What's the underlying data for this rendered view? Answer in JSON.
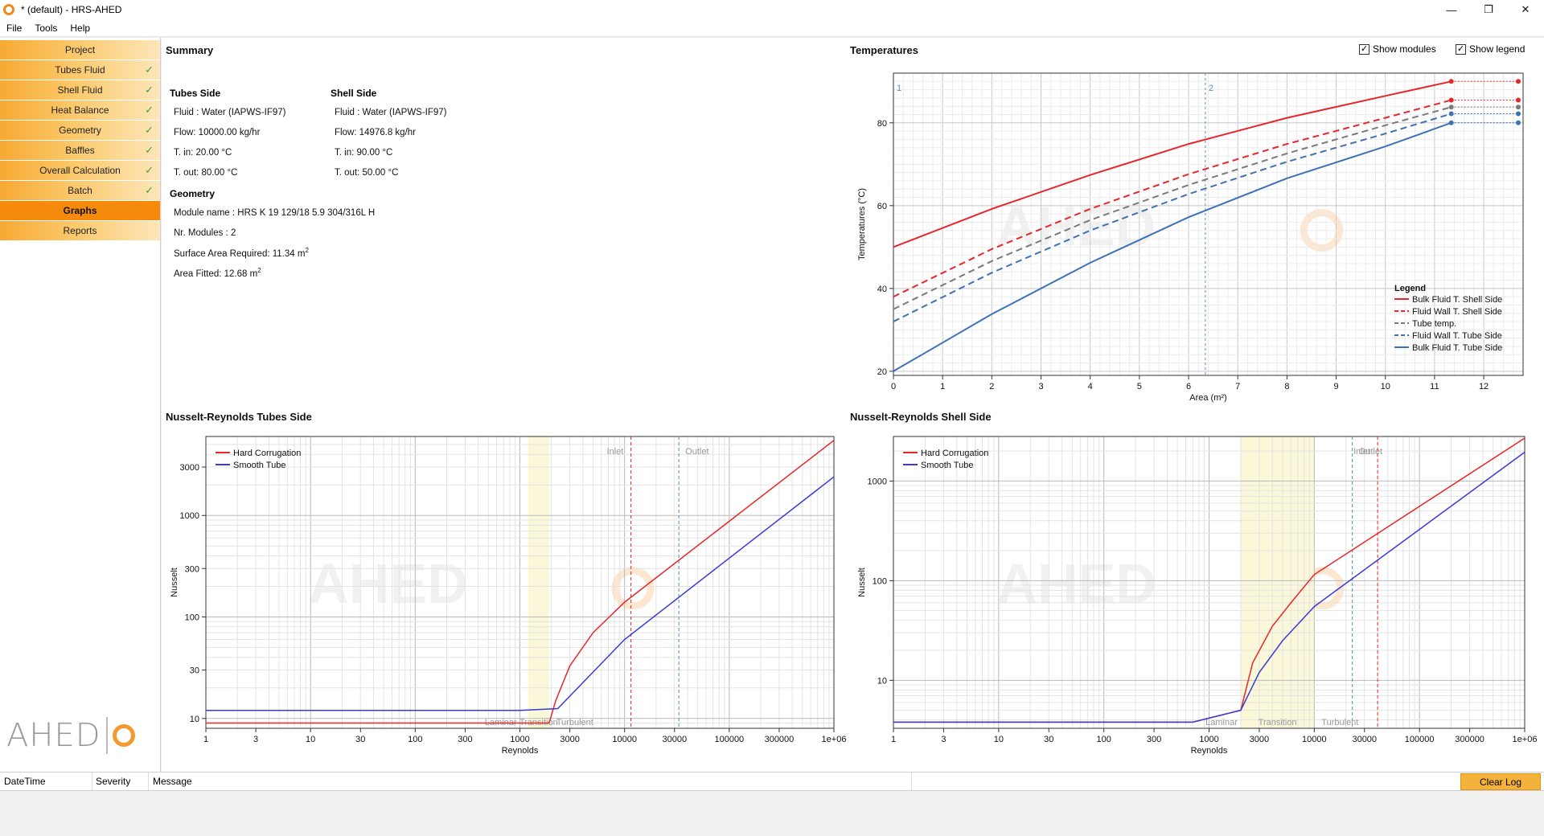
{
  "window": {
    "title": "* (default) - HRS-AHED",
    "controls": [
      "—",
      "❐",
      "✕"
    ]
  },
  "menu": [
    "File",
    "Tools",
    "Help"
  ],
  "sidebar": {
    "items": [
      {
        "label": "Project",
        "checked": false
      },
      {
        "label": "Tubes Fluid",
        "checked": true
      },
      {
        "label": "Shell Fluid",
        "checked": true
      },
      {
        "label": "Heat Balance",
        "checked": true
      },
      {
        "label": "Geometry",
        "checked": true
      },
      {
        "label": "Baffles",
        "checked": true
      },
      {
        "label": "Overall Calculation",
        "checked": true
      },
      {
        "label": "Batch",
        "checked": true
      },
      {
        "label": "Graphs",
        "checked": false,
        "active": true
      },
      {
        "label": "Reports",
        "checked": false
      }
    ],
    "check_mark": "✓",
    "logo_text": "AHED"
  },
  "summary": {
    "title": "Summary",
    "tubes": {
      "heading": "Tubes Side",
      "fluid": "Fluid : Water (IAPWS-IF97)",
      "flow": "Flow: 10000.00 kg/hr",
      "t_in": "T. in: 20.00 °C",
      "t_out": "T. out: 80.00 °C"
    },
    "shell": {
      "heading": "Shell Side",
      "fluid": "Fluid : Water (IAPWS-IF97)",
      "flow": "Flow: 14976.8 kg/hr",
      "t_in": "T. in: 90.00 °C",
      "t_out": "T. out: 50.00 °C"
    },
    "geometry": {
      "heading": "Geometry",
      "module_name": "Module name : HRS K 19 129/18 5.9 304/316L H",
      "nr_modules": "Nr. Modules : 2",
      "surface_required": "Surface Area Required: 11.34 m",
      "area_fitted": "Area Fitted: 12.68 m",
      "sup": "2"
    }
  },
  "temperatures_panel": {
    "title": "Temperatures",
    "show_modules": {
      "label": "Show modules",
      "checked": true
    },
    "show_legend": {
      "label": "Show legend",
      "checked": true
    }
  },
  "nr_tubes_title": "Nusselt-Reynolds Tubes Side",
  "nr_shell_title": "Nusselt-Reynolds Shell Side",
  "watermark": "AHED",
  "chart_data": [
    {
      "type": "line",
      "title": "Temperatures",
      "xlabel": "Area (m²)",
      "ylabel": "Temperatures (°C)",
      "xlim": [
        0,
        12.8
      ],
      "ylim": [
        19,
        92
      ],
      "xticks": [
        0,
        1,
        2,
        3,
        4,
        5,
        6,
        7,
        8,
        9,
        10,
        11,
        12
      ],
      "yticks": [
        20,
        40,
        60,
        80
      ],
      "module_markers": [
        {
          "label": "1",
          "x": 0
        },
        {
          "label": "2",
          "x": 6.34
        }
      ],
      "legend_title": "Legend",
      "legend_position": "bottom-right",
      "series": [
        {
          "name": "Bulk Fluid T. Shell Side",
          "color": "#e8262a",
          "dash": "",
          "x": [
            0,
            2,
            4,
            6,
            8,
            10,
            11.34
          ],
          "y": [
            50,
            59.2,
            67.4,
            74.9,
            81.2,
            86.5,
            90
          ]
        },
        {
          "name": "Fluid Wall T. Shell Side",
          "color": "#e8262a",
          "dash": "8,5",
          "x": [
            0,
            2,
            4,
            6,
            8,
            10,
            11.34
          ],
          "y": [
            38,
            49.5,
            59.2,
            67.6,
            74.9,
            81.2,
            85.5
          ]
        },
        {
          "name": "Tube temp.",
          "color": "#7a7a7a",
          "dash": "8,5",
          "x": [
            0,
            2,
            4,
            6,
            8,
            10,
            11.34
          ],
          "y": [
            35,
            46.6,
            56.5,
            65,
            72.6,
            79.4,
            83.8
          ]
        },
        {
          "name": "Fluid Wall T. Tube Side",
          "color": "#3e72b5",
          "dash": "8,5",
          "x": [
            0,
            2,
            4,
            6,
            8,
            10,
            11.34
          ],
          "y": [
            32,
            43.8,
            54,
            62.8,
            70.6,
            77.4,
            82.2
          ]
        },
        {
          "name": "Bulk Fluid T. Tube Side",
          "color": "#3e72b5",
          "dash": "",
          "x": [
            0,
            2,
            4,
            6,
            8,
            10,
            11.34
          ],
          "y": [
            20,
            33.8,
            46.2,
            57.2,
            66.6,
            74.3,
            80
          ]
        }
      ]
    },
    {
      "type": "line",
      "title": "Nusselt-Reynolds Tubes Side",
      "xlabel": "Reynolds",
      "ylabel": "Nusselt",
      "xscale": "log",
      "yscale": "log",
      "xlim": [
        1,
        1000000
      ],
      "ylim": [
        8,
        6000
      ],
      "xticks": [
        1,
        3,
        10,
        30,
        100,
        300,
        1000,
        3000,
        10000,
        30000,
        100000,
        300000,
        1000000
      ],
      "xtick_labels": [
        "1",
        "3",
        "10",
        "30",
        "100",
        "300",
        "1000",
        "3000",
        "10000",
        "30000",
        "100000",
        "300000",
        "1e+06"
      ],
      "yticks": [
        10,
        30,
        100,
        300,
        1000,
        3000
      ],
      "regions": [
        {
          "label": "Laminar",
          "to": 1000
        },
        {
          "label": "Transition",
          "from": 1200,
          "to": 1900
        },
        {
          "label": "Turbulent",
          "from": 1900
        }
      ],
      "vlines": [
        {
          "label": "Inlet",
          "x": 11500,
          "color": "#e8262a"
        },
        {
          "label": "Outlet",
          "x": 33000,
          "color": "#4a8fb8"
        }
      ],
      "legend_position": "top-left",
      "series": [
        {
          "name": "Hard Corrugation",
          "color": "#e8262a",
          "x": [
            1,
            1000,
            1900,
            2200,
            3000,
            5000,
            10000,
            1000000
          ],
          "y": [
            9,
            9,
            9,
            15,
            33,
            70,
            140,
            5500
          ]
        },
        {
          "name": "Smooth Tube",
          "color": "#3a3ad6",
          "x": [
            1,
            1000,
            2300,
            10000,
            1000000
          ],
          "y": [
            12,
            12,
            12.5,
            60,
            2400
          ]
        }
      ]
    },
    {
      "type": "line",
      "title": "Nusselt-Reynolds Shell Side",
      "xlabel": "Reynolds",
      "ylabel": "Nusselt",
      "xscale": "log",
      "yscale": "log",
      "xlim": [
        1,
        1000000
      ],
      "ylim": [
        3.3,
        2800
      ],
      "xticks": [
        1,
        3,
        10,
        30,
        100,
        300,
        1000,
        3000,
        10000,
        30000,
        100000,
        300000,
        1000000
      ],
      "xtick_labels": [
        "1",
        "3",
        "10",
        "30",
        "100",
        "300",
        "1000",
        "3000",
        "10000",
        "30000",
        "100000",
        "300000",
        "1e+06"
      ],
      "yticks": [
        10,
        100,
        1000
      ],
      "regions": [
        {
          "label": "Laminar",
          "to": 2000
        },
        {
          "label": "Transition",
          "from": 2000,
          "to": 10000
        },
        {
          "label": "Turbulent",
          "from": 10000
        }
      ],
      "vlines": [
        {
          "label": "Outlet",
          "x": 23000,
          "color": "#4a8fb8"
        },
        {
          "label": "Inlet",
          "x": 40000,
          "color": "#e8262a"
        }
      ],
      "legend_position": "top-left",
      "series": [
        {
          "name": "Hard Corrugation",
          "color": "#e8262a",
          "x": [
            1,
            700,
            2000,
            2600,
            4000,
            6000,
            10000,
            1000000
          ],
          "y": [
            3.8,
            3.8,
            5,
            15,
            35,
            60,
            115,
            2700
          ]
        },
        {
          "name": "Smooth Tube",
          "color": "#3a3ad6",
          "x": [
            1,
            700,
            2000,
            3000,
            5000,
            10000,
            1000000
          ],
          "y": [
            3.8,
            3.8,
            5,
            12,
            25,
            55,
            1950
          ]
        }
      ]
    }
  ],
  "log": {
    "columns": [
      "DateTime",
      "Severity",
      "Message"
    ],
    "clear_label": "Clear Log"
  }
}
